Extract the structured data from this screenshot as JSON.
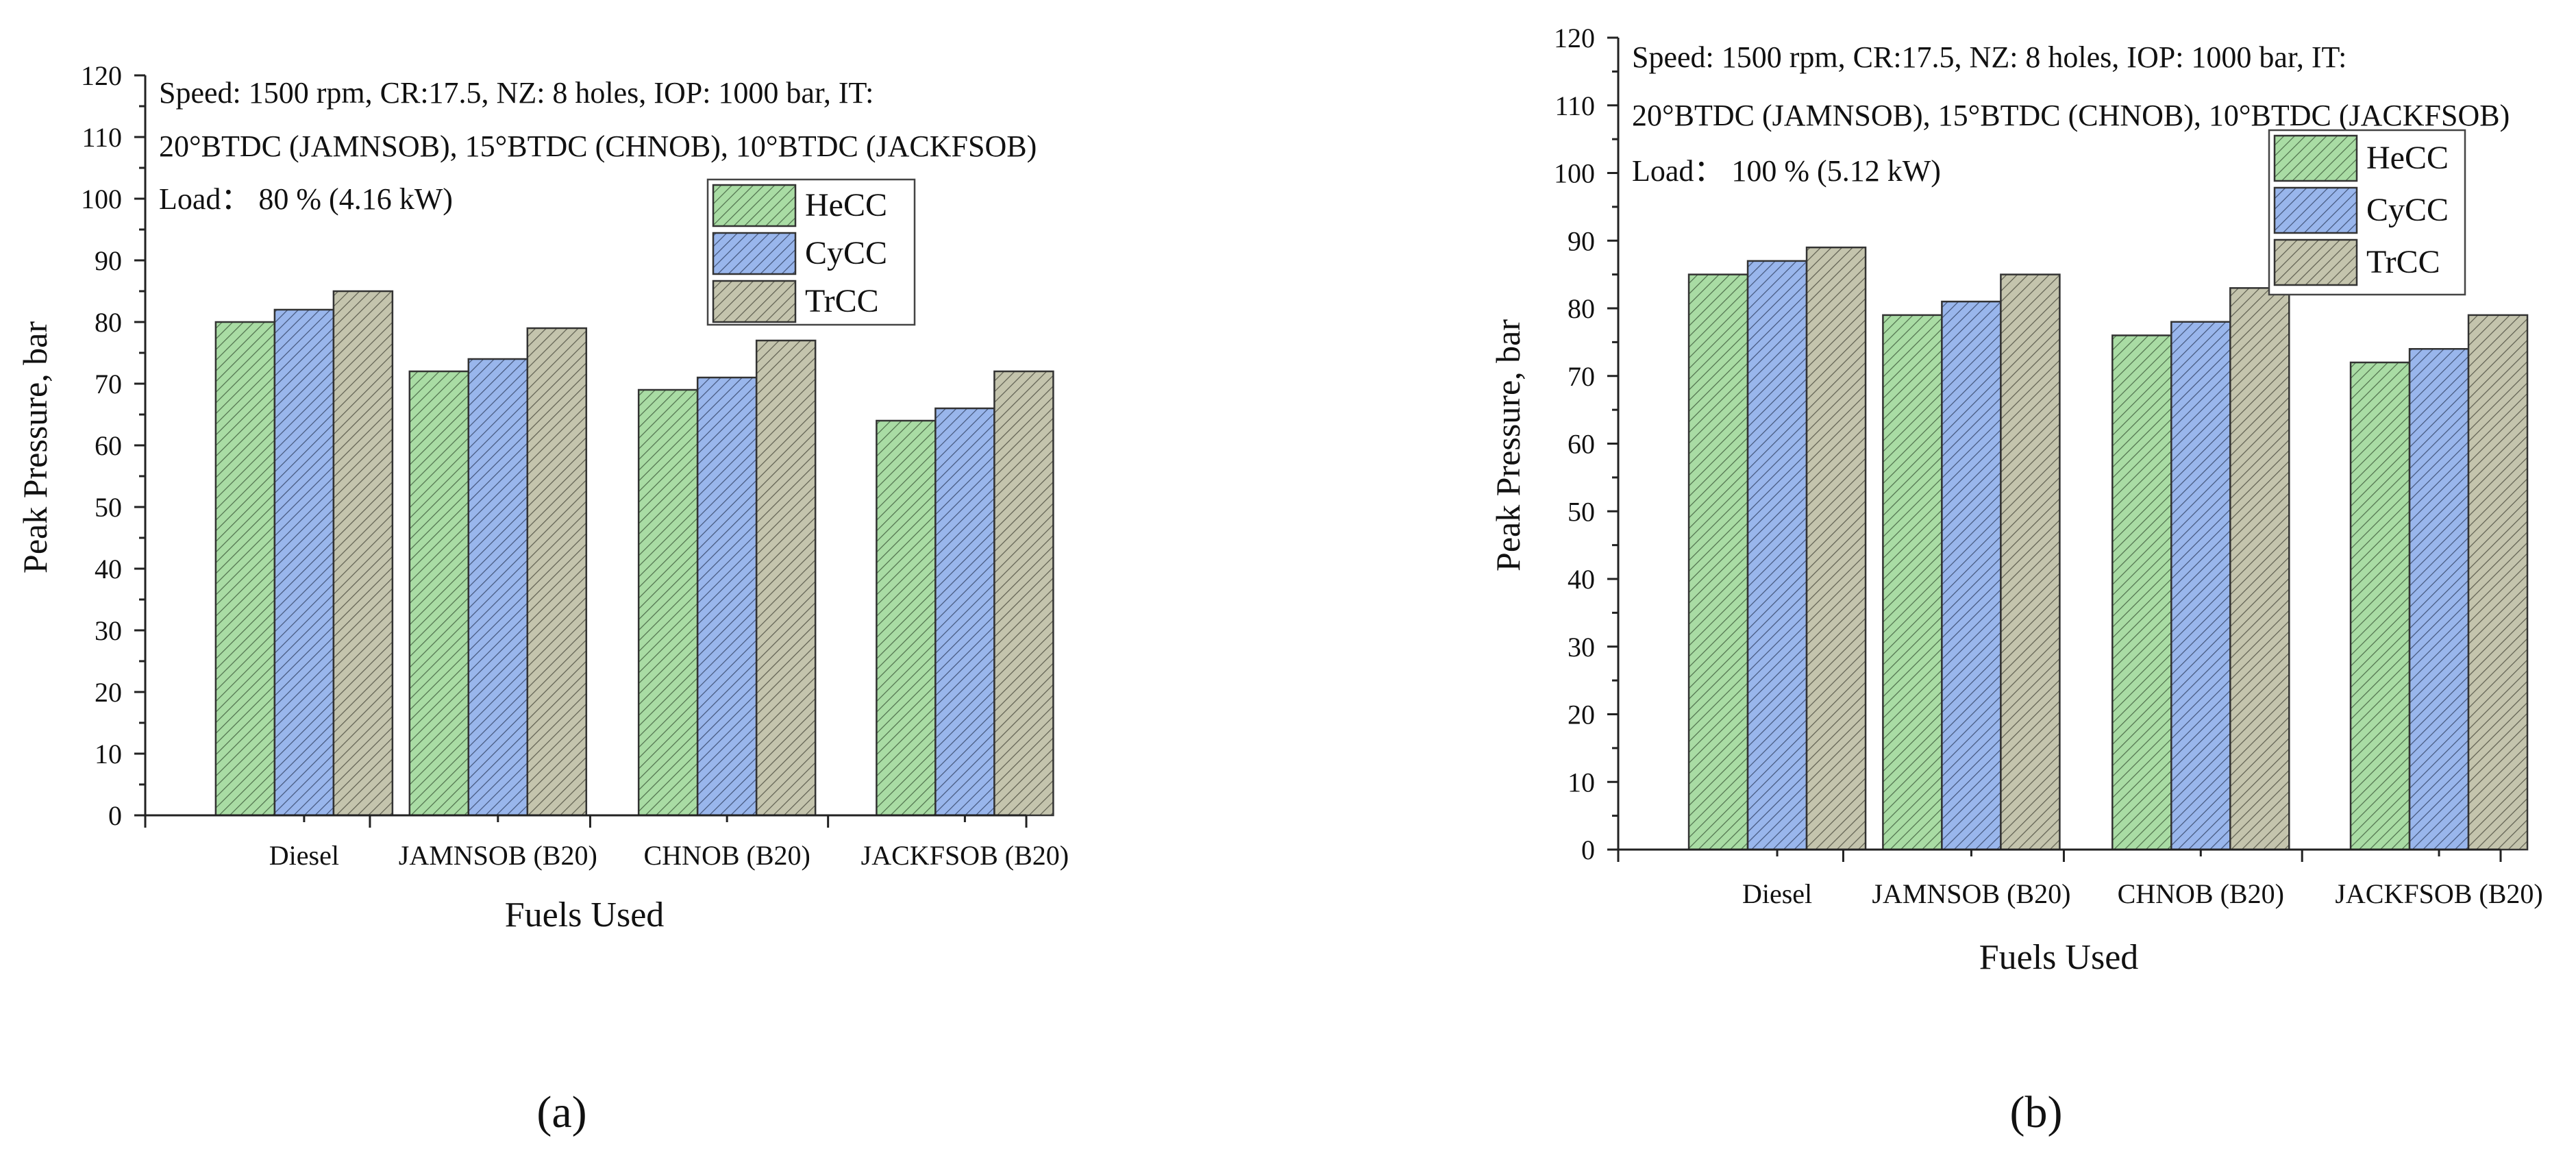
{
  "chart_data": [
    {
      "type": "bar",
      "panel_label": "(a)",
      "title": "",
      "annotations": [
        "Speed: 1500 rpm, CR:17.5, NZ: 8 holes, IOP: 1000 bar, IT:",
        "20°BTDC (JAMNSOB), 15°BTDC (CHNOB), 10°BTDC (JACKFSOB)",
        "Load： 80 %  (4.16 kW)"
      ],
      "xlabel": "Fuels Used",
      "ylabel": "Peak Pressure, bar",
      "ylim": [
        0,
        120
      ],
      "yticks": [
        0,
        10,
        20,
        30,
        40,
        50,
        60,
        70,
        80,
        90,
        100,
        110,
        120
      ],
      "categories": [
        "Diesel",
        "JAMNSOB (B20)",
        "CHNOB (B20)",
        "JACKFSOB (B20)"
      ],
      "series": [
        {
          "name": "HeCC",
          "values": [
            80,
            72,
            69,
            64
          ]
        },
        {
          "name": "CyCC",
          "values": [
            82,
            74,
            71,
            66
          ]
        },
        {
          "name": "TrCC",
          "values": [
            85,
            79,
            77,
            72
          ]
        }
      ],
      "legend_position": "top-right"
    },
    {
      "type": "bar",
      "panel_label": "(b)",
      "title": "",
      "annotations": [
        "Speed: 1500 rpm, CR:17.5, NZ: 8 holes, IOP: 1000 bar, IT:",
        "20°BTDC (JAMNSOB), 15°BTDC (CHNOB), 10°BTDC (JACKFSOB)",
        "Load： 100 %  (5.12 kW)"
      ],
      "xlabel": "Fuels Used",
      "ylabel": "Peak Pressure, bar",
      "ylim": [
        0,
        120
      ],
      "yticks": [
        0,
        10,
        20,
        30,
        40,
        50,
        60,
        70,
        80,
        90,
        100,
        110,
        120
      ],
      "categories": [
        "Diesel",
        "JAMNSOB (B20)",
        "CHNOB (B20)",
        "JACKFSOB (B20)"
      ],
      "series": [
        {
          "name": "HeCC",
          "values": [
            85,
            79,
            76,
            72
          ]
        },
        {
          "name": "CyCC",
          "values": [
            87,
            81,
            78,
            74
          ]
        },
        {
          "name": "TrCC",
          "values": [
            89,
            85,
            83,
            79
          ]
        }
      ],
      "legend_position": "top-right"
    }
  ],
  "colors": {
    "HeCC": "#a9dca4",
    "CyCC": "#99b6ec",
    "TrCC": "#c4c4ad",
    "hatch": "#5a5a5a"
  }
}
